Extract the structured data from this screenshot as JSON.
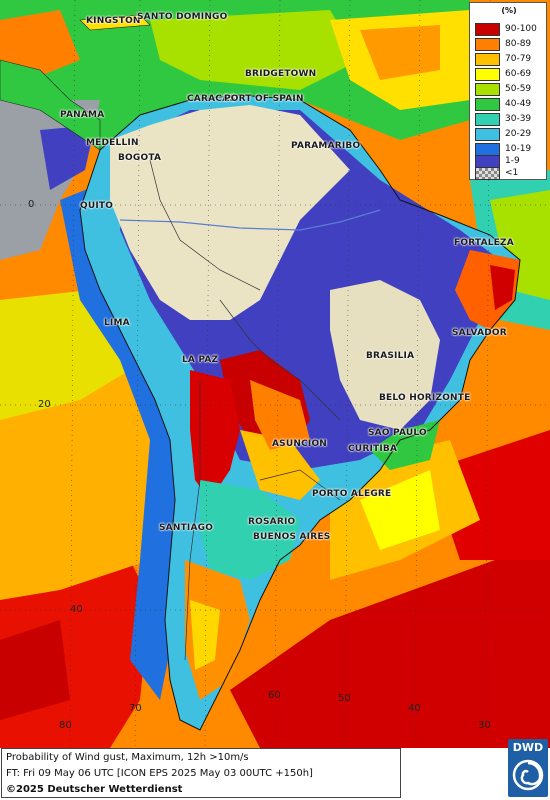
{
  "legend": {
    "title": "(%)",
    "items": [
      {
        "label": "90-100",
        "color": "#c80000"
      },
      {
        "label": "80-89",
        "color": "#ff8000"
      },
      {
        "label": "70-79",
        "color": "#ffc000"
      },
      {
        "label": "60-69",
        "color": "#ffff00"
      },
      {
        "label": "50-59",
        "color": "#a8e000"
      },
      {
        "label": "40-49",
        "color": "#30c840"
      },
      {
        "label": "30-39",
        "color": "#30d0b0"
      },
      {
        "label": "20-29",
        "color": "#40c0e0"
      },
      {
        "label": "10-19",
        "color": "#2070e0"
      },
      {
        "label": "1-9",
        "color": "#4040c0"
      },
      {
        "label": "<1",
        "color": "#b0b0b0"
      }
    ]
  },
  "cities": {
    "kingston": "KINGSTON",
    "santo_domingo": "SANTO DOMINGO",
    "bridgetown": "BRIDGETOWN",
    "caracas": "CARACAS",
    "port_of_spain": "PORT OF SPAIN",
    "panama": "PANAMA",
    "medellin": "MEDELLIN",
    "bogota": "BOGOTA",
    "paramaribo": "PARAMARIBO",
    "quito": "QUITO",
    "fortaleza": "FORTALEZA",
    "lima": "LIMA",
    "salvador": "SALVADOR",
    "brasilia": "BRASILIA",
    "la_paz": "LA PAZ",
    "belo_horizonte": "BELO HORIZONTE",
    "sao_paulo": "SAO PAULO",
    "asuncion": "ASUNCION",
    "curitiba": "CURITIBA",
    "porto_alegre": "PORTO ALEGRE",
    "rosario": "ROSARIO",
    "santiago": "SANTIAGO",
    "buenos_aires": "BUENOS AIRES"
  },
  "grid_labels": {
    "lat_0": "0",
    "lat_20": "20",
    "lat_40": "40",
    "lon_80": "80",
    "lon_70": "70",
    "lon_60": "60",
    "lon_50": "50",
    "lon_40": "40",
    "lon_30": "30"
  },
  "footer": {
    "line1": "Probability of Wind gust, Maximum, 12h >10m/s",
    "line2": "FT: Fri 09 May 06 UTC [ICON EPS 2025 May 03 00UTC +150h]",
    "credit": "©2025 Deutscher Wetterdienst"
  },
  "logo": {
    "text": "DWD"
  }
}
